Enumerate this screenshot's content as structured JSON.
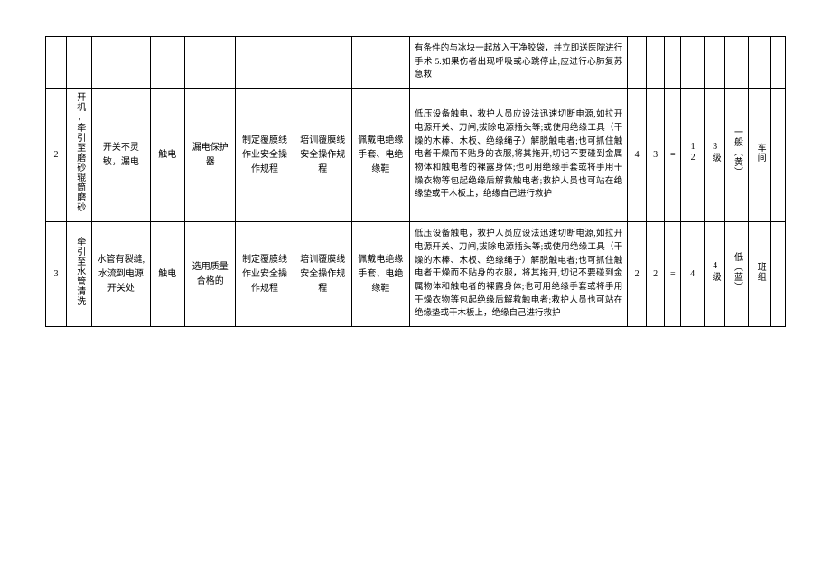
{
  "rows": [
    {
      "num": "",
      "step": "",
      "cause": "",
      "hazard": "",
      "ctrl1": "",
      "ctrl2": "",
      "ctrl3": "",
      "ctrl4": "",
      "emerg": "有条件的与冰块一起放入干净胶袋，并立即送医院进行手术 5.如果伤者出现呼吸或心跳停止,应进行心肺复苏急救",
      "L": "",
      "S": "",
      "eq": "",
      "R": "",
      "lvl": "",
      "risk": "",
      "resp": "",
      "last": ""
    },
    {
      "num": "2",
      "step": "开机,牵引至磨砂辊筒磨砂",
      "cause": "开关不灵敏，漏电",
      "hazard": "触电",
      "ctrl1": "漏电保护器",
      "ctrl2": "制定覆膜线作业安全操作规程",
      "ctrl3": "培训覆膜线安全操作规程",
      "ctrl4": "佩戴电绝缘手套、电绝缘鞋",
      "emerg": "低压设备触电，救护人员应设法迅速切断电源,如拉开电源开关、刀闸,拔除电源插头等;或使用绝缘工具（干燥的木棒、木板、绝缘绳子）解脱触电者;也可抓住触电者干燥而不贴身的衣服,将其拖开,切记不要碰到金属物体和触电者的裸露身体;也可用绝缘手套或将手用干燥衣物等包起绝缘后解救触电者;救护人员也可站在绝缘垫或干木板上，绝缘自己进行救护",
      "L": "4",
      "S": "3",
      "eq": "=",
      "R": "12",
      "lvl": "3级",
      "risk": "一般（黄）",
      "resp": "车间",
      "last": ""
    },
    {
      "num": "3",
      "step": "牵引至水管清洗",
      "cause": "水管有裂缝,水流到电源开关处",
      "hazard": "触电",
      "ctrl1": "选用质量合格的",
      "ctrl2": "制定覆膜线作业安全操作规程",
      "ctrl3": "培训覆膜线安全操作规程",
      "ctrl4": "佩戴电绝缘手套、电绝缘鞋",
      "emerg": "低压设备触电，救护人员应设法迅速切断电源,如拉开电源开关、刀闸,拔除电源插头等;或使用绝缘工具（干燥的木棒、木板、绝缘绳子）解脱触电者;也可抓住触电者干燥而不贴身的衣服，将其拖开,切记不要碰到金属物体和触电者的裸露身体;也可用绝缘手套或将手用干燥衣物等包起绝缘后解救触电者;救护人员也可站在绝缘垫或干木板上，绝缘自己进行救护",
      "L": "2",
      "S": "2",
      "eq": "=",
      "R": "4",
      "lvl": "4级",
      "risk": "低（蓝）",
      "resp": "班组",
      "last": ""
    }
  ]
}
